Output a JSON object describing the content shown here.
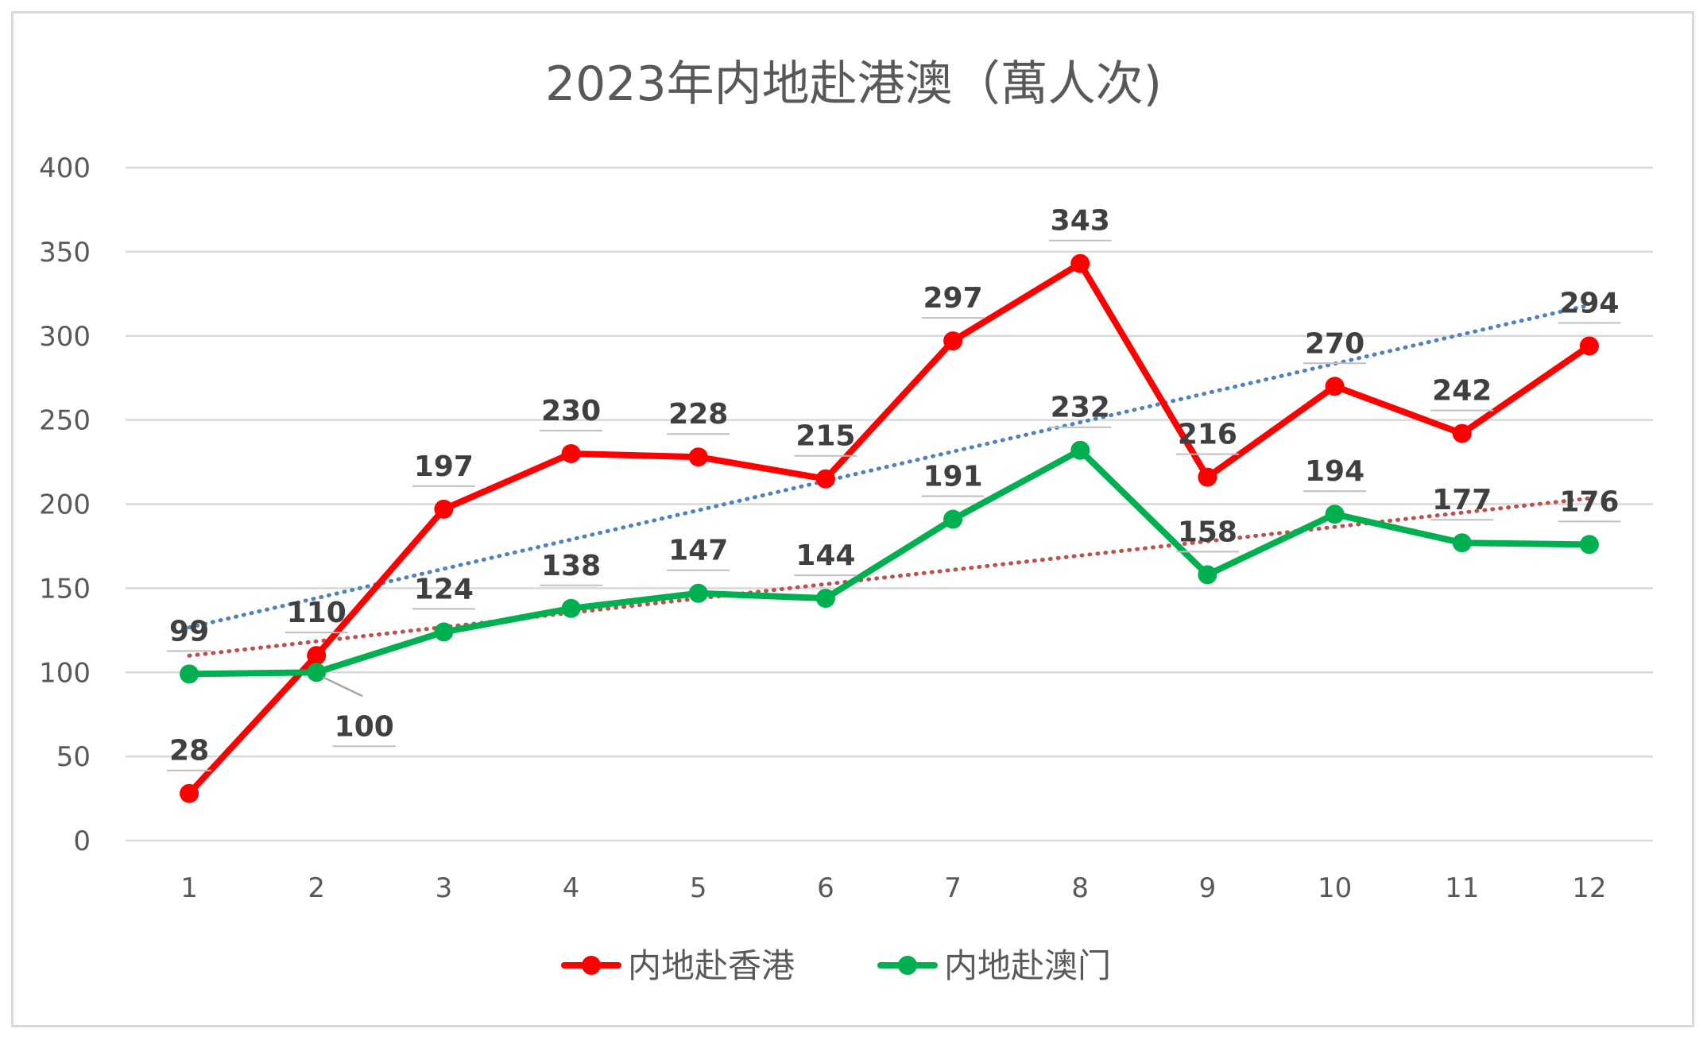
{
  "chart_data": {
    "type": "line",
    "title": "2023年内地赴港澳（萬人次)",
    "categories": [
      "1",
      "2",
      "3",
      "4",
      "5",
      "6",
      "7",
      "8",
      "9",
      "10",
      "11",
      "12"
    ],
    "ylim": [
      0,
      400
    ],
    "yticks": [
      "0",
      "50",
      "100",
      "150",
      "200",
      "250",
      "300",
      "350",
      "400"
    ],
    "grid": "horizontal",
    "legend_position": "bottom",
    "series": [
      {
        "name": "内地赴香港",
        "color": "#ff0000",
        "values": [
          28,
          110,
          197,
          230,
          228,
          215,
          297,
          343,
          216,
          270,
          242,
          294
        ],
        "labels": [
          "28",
          "110",
          "197",
          "230",
          "228",
          "215",
          "297",
          "343",
          "216",
          "270",
          "242",
          "294"
        ]
      },
      {
        "name": "内地赴澳门",
        "color": "#00b050",
        "values": [
          99,
          100,
          124,
          138,
          147,
          144,
          191,
          232,
          158,
          194,
          177,
          176
        ],
        "labels": [
          "99",
          "100",
          "124",
          "138",
          "147",
          "144",
          "191",
          "232",
          "158",
          "194",
          "177",
          "176"
        ]
      }
    ],
    "trendlines": [
      {
        "type": "linear",
        "series": "内地赴香港",
        "color": "#4f81bd",
        "style": "dotted"
      },
      {
        "type": "linear",
        "series": "内地赴澳门",
        "color": "#c0504d",
        "style": "dotted"
      }
    ]
  }
}
